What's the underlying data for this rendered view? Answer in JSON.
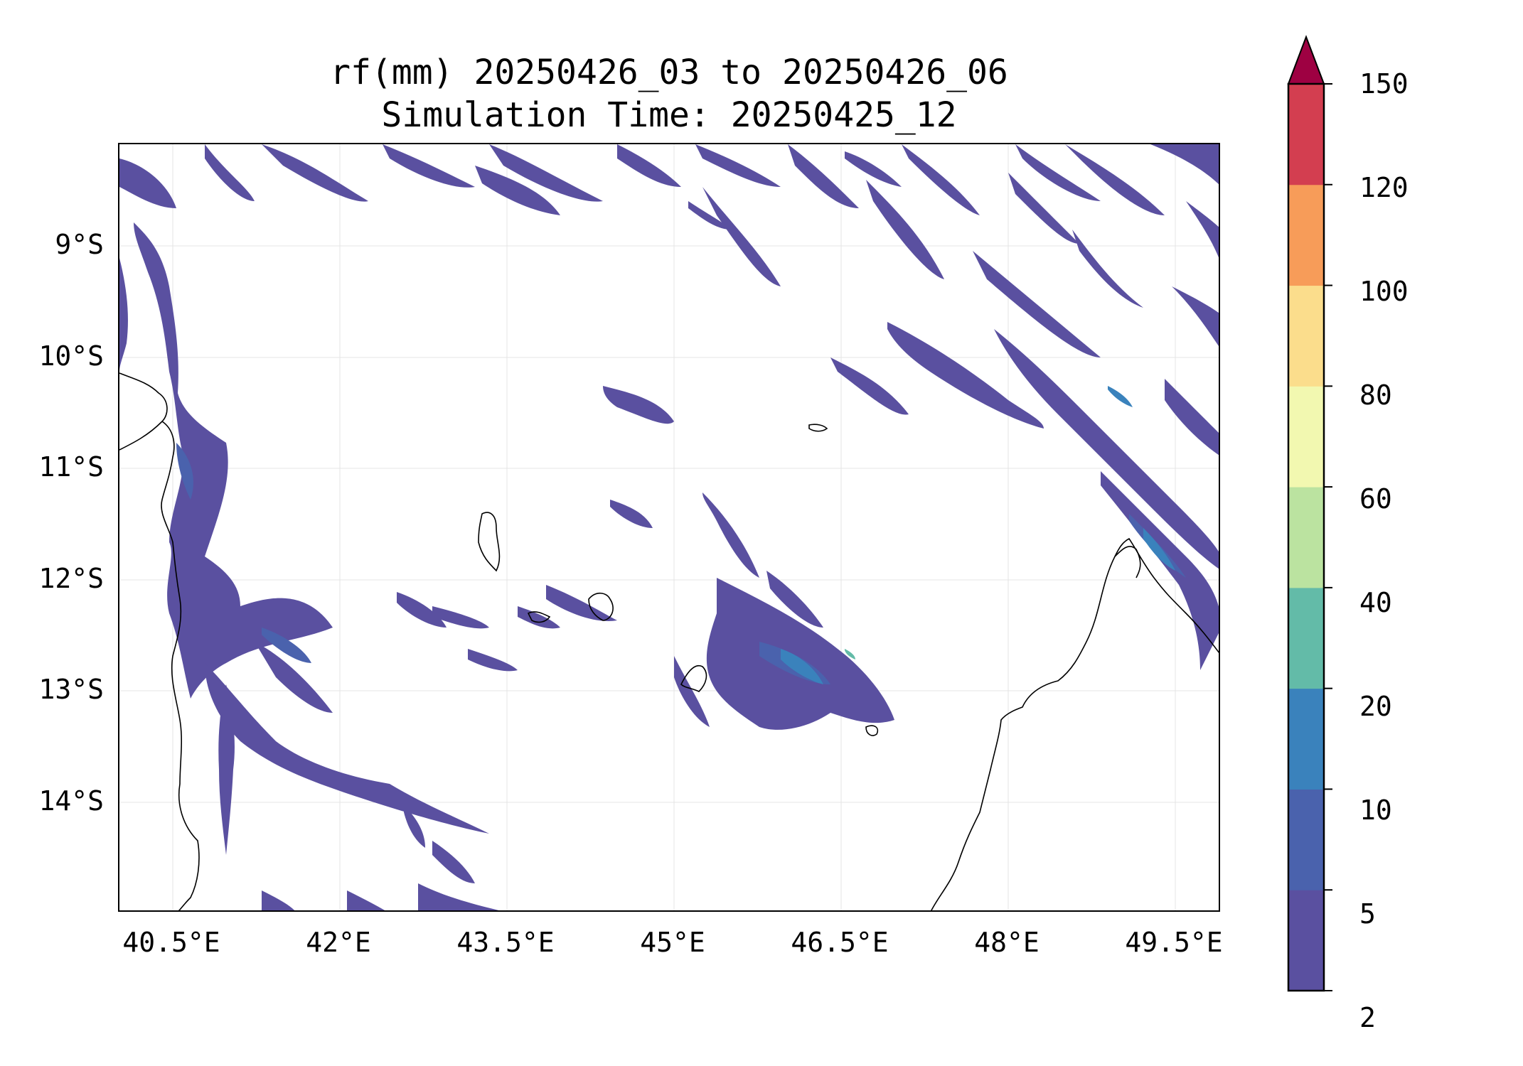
{
  "title": {
    "line1": "rf(mm) 20250426_03 to 20250426_06",
    "line2": "Simulation Time: 20250425_12"
  },
  "axes": {
    "lat_labels": [
      "9°S",
      "10°S",
      "11°S",
      "12°S",
      "13°S",
      "14°S"
    ],
    "lat_values": [
      -9,
      -10,
      -11,
      -12,
      -13,
      -14
    ],
    "lon_labels": [
      "40.5°E",
      "42°E",
      "43.5°E",
      "45°E",
      "46.5°E",
      "48°E",
      "49.5°E"
    ],
    "lon_values": [
      40.5,
      42.0,
      43.5,
      45.0,
      46.5,
      48.0,
      49.5
    ],
    "lon_range": [
      40.03,
      49.95
    ],
    "lat_range": [
      -14.95,
      -8.05
    ],
    "grid": true
  },
  "colorbar": {
    "levels": [
      "2",
      "5",
      "10",
      "20",
      "40",
      "60",
      "80",
      "100",
      "120",
      "150"
    ],
    "colors": [
      "#5a50a0",
      "#4a62ad",
      "#3a82bc",
      "#63bba8",
      "#bbe3a0",
      "#f2f8b0",
      "#fbdd8c",
      "#f79c59",
      "#d33e50"
    ],
    "extend_color": "#9e0142",
    "extend": "max"
  },
  "map": {
    "rain_colors": {
      "c1": "#5a50a0",
      "c2": "#4a62ad",
      "c3": "#3a82bc",
      "c4": "#63bba8"
    },
    "coastline_color": "#000000"
  }
}
